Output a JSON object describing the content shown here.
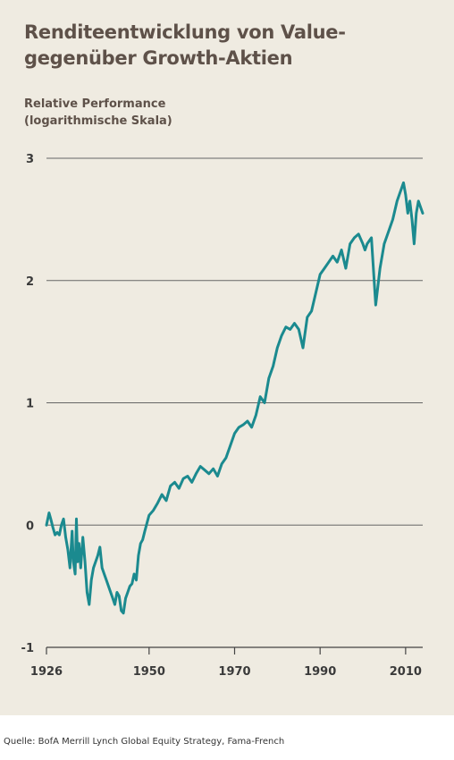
{
  "title": "Renditeentwicklung von Value- gegenüber Growth-Aktien",
  "ylabel": "Relative Performance\n(logarithmische Skala)",
  "source": "Quelle: BofA Merrill Lynch Global Equity Strategy, Fama-French",
  "colors": {
    "line": "#1b8a8f",
    "grid": "#666666",
    "background": "#efebe1",
    "text": "#5e5149"
  },
  "chart_data": {
    "type": "line",
    "title": "Renditeentwicklung von Value- gegenüber Growth-Aktien",
    "xlabel": "",
    "ylabel": "Relative Performance (logarithmische Skala)",
    "xlim": [
      1926,
      2014
    ],
    "ylim": [
      -1,
      3
    ],
    "x_ticks": [
      1926,
      1950,
      1970,
      1990,
      2010
    ],
    "y_ticks": [
      -1,
      0,
      1,
      2,
      3
    ],
    "grid": "horizontal",
    "series": [
      {
        "x": [
          1926,
          1926.6,
          1927,
          1927.5,
          1928,
          1928.5,
          1929,
          1929.5,
          1930,
          1930.5,
          1931,
          1931.5,
          1932,
          1932.3,
          1932.7,
          1933,
          1933.3,
          1933.6,
          1934,
          1934.5,
          1935,
          1935.5,
          1936,
          1936.5,
          1937,
          1937.5,
          1938,
          1938.5,
          1939,
          1939.5,
          1940,
          1940.5,
          1941,
          1941.5,
          1942,
          1942.5,
          1943,
          1943.5,
          1944,
          1944.5,
          1945,
          1945.5,
          1946,
          1946.5,
          1947,
          1947.5,
          1948,
          1948.5,
          1949,
          1950,
          1951,
          1952,
          1953,
          1954,
          1955,
          1956,
          1957,
          1958,
          1959,
          1960,
          1961,
          1962,
          1963,
          1964,
          1965,
          1966,
          1967,
          1968,
          1969,
          1970,
          1971,
          1972,
          1973,
          1974,
          1975,
          1976,
          1977,
          1978,
          1979,
          1980,
          1981,
          1982,
          1983,
          1984,
          1985,
          1986,
          1987,
          1988,
          1989,
          1990,
          1991,
          1992,
          1993,
          1994,
          1995,
          1996,
          1997,
          1998,
          1999,
          2000,
          2000.5,
          2001,
          2002,
          2003,
          2004,
          2005,
          2006,
          2007,
          2008,
          2008.5,
          2009,
          2009.5,
          2010,
          2010.5,
          2011,
          2011.5,
          2012,
          2012.5,
          2013,
          2013.5,
          2014
        ],
        "y": [
          0,
          0.1,
          0.05,
          -0.02,
          -0.08,
          -0.06,
          -0.08,
          0.0,
          0.05,
          -0.1,
          -0.2,
          -0.35,
          -0.05,
          -0.3,
          -0.4,
          0.05,
          -0.3,
          -0.15,
          -0.35,
          -0.1,
          -0.3,
          -0.55,
          -0.65,
          -0.45,
          -0.35,
          -0.3,
          -0.25,
          -0.18,
          -0.35,
          -0.4,
          -0.45,
          -0.5,
          -0.55,
          -0.6,
          -0.65,
          -0.55,
          -0.58,
          -0.7,
          -0.72,
          -0.6,
          -0.55,
          -0.5,
          -0.48,
          -0.4,
          -0.45,
          -0.25,
          -0.15,
          -0.12,
          -0.05,
          0.08,
          0.12,
          0.18,
          0.25,
          0.2,
          0.32,
          0.35,
          0.3,
          0.38,
          0.4,
          0.35,
          0.42,
          0.48,
          0.45,
          0.42,
          0.46,
          0.4,
          0.5,
          0.55,
          0.65,
          0.75,
          0.8,
          0.82,
          0.85,
          0.8,
          0.9,
          1.05,
          1.0,
          1.2,
          1.3,
          1.45,
          1.55,
          1.62,
          1.6,
          1.65,
          1.6,
          1.45,
          1.7,
          1.75,
          1.9,
          2.05,
          2.1,
          2.15,
          2.2,
          2.15,
          2.25,
          2.1,
          2.3,
          2.35,
          2.38,
          2.3,
          2.25,
          2.3,
          2.35,
          1.8,
          2.1,
          2.3,
          2.4,
          2.5,
          2.65,
          2.7,
          2.75,
          2.8,
          2.7,
          2.55,
          2.65,
          2.5,
          2.3,
          2.55,
          2.65,
          2.6,
          2.55
        ]
      }
    ]
  }
}
